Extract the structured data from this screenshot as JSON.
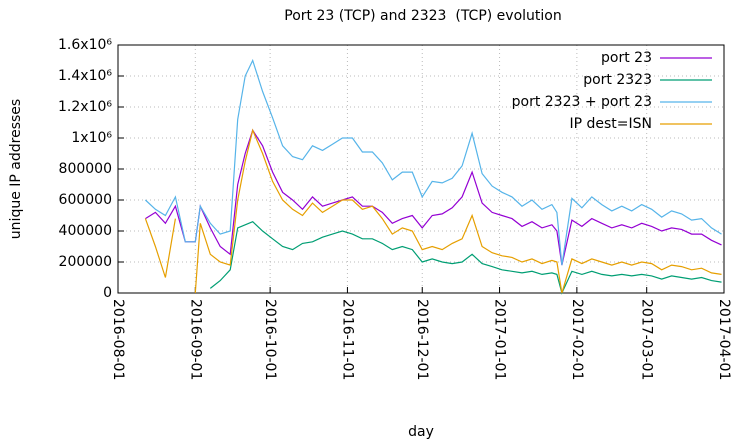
{
  "chart_data": {
    "type": "line",
    "title": "Port 23 (TCP) and 2323  (TCP) evolution",
    "x_label": "day",
    "y_label": "unique IP addresses",
    "x": [
      "2016-08-12",
      "2016-08-16",
      "2016-08-20",
      "2016-08-24",
      "2016-08-28",
      "2016-09-01",
      "2016-09-03",
      "2016-09-07",
      "2016-09-11",
      "2016-09-15",
      "2016-09-18",
      "2016-09-21",
      "2016-09-24",
      "2016-09-28",
      "2016-10-02",
      "2016-10-06",
      "2016-10-10",
      "2016-10-14",
      "2016-10-18",
      "2016-10-22",
      "2016-10-26",
      "2016-10-30",
      "2016-11-03",
      "2016-11-07",
      "2016-11-11",
      "2016-11-15",
      "2016-11-19",
      "2016-11-23",
      "2016-11-27",
      "2016-12-01",
      "2016-12-05",
      "2016-12-09",
      "2016-12-13",
      "2016-12-17",
      "2016-12-21",
      "2016-12-25",
      "2016-12-29",
      "2017-01-02",
      "2017-01-06",
      "2017-01-10",
      "2017-01-14",
      "2017-01-18",
      "2017-01-22",
      "2017-01-24",
      "2017-01-26",
      "2017-01-30",
      "2017-02-03",
      "2017-02-07",
      "2017-02-11",
      "2017-02-15",
      "2017-02-19",
      "2017-02-23",
      "2017-02-27",
      "2017-03-03",
      "2017-03-07",
      "2017-03-11",
      "2017-03-15",
      "2017-03-19",
      "2017-03-23",
      "2017-03-27",
      "2017-03-31"
    ],
    "series": [
      {
        "name": "port 23",
        "color": "#9400d3",
        "values": [
          480000,
          520000,
          450000,
          560000,
          330000,
          330000,
          560000,
          420000,
          300000,
          250000,
          700000,
          900000,
          1050000,
          950000,
          780000,
          650000,
          600000,
          540000,
          620000,
          560000,
          580000,
          600000,
          620000,
          560000,
          560000,
          520000,
          450000,
          480000,
          500000,
          420000,
          500000,
          510000,
          550000,
          620000,
          780000,
          580000,
          520000,
          500000,
          480000,
          430000,
          460000,
          420000,
          440000,
          400000,
          180000,
          470000,
          430000,
          480000,
          450000,
          420000,
          440000,
          420000,
          450000,
          430000,
          400000,
          420000,
          410000,
          380000,
          380000,
          340000,
          310000
        ]
      },
      {
        "name": "port 2323",
        "color": "#009e73",
        "values": [
          null,
          null,
          null,
          null,
          null,
          null,
          null,
          30000,
          80000,
          150000,
          420000,
          440000,
          460000,
          400000,
          350000,
          300000,
          280000,
          320000,
          330000,
          360000,
          380000,
          400000,
          380000,
          350000,
          350000,
          320000,
          280000,
          300000,
          280000,
          200000,
          220000,
          200000,
          190000,
          200000,
          250000,
          190000,
          170000,
          150000,
          140000,
          130000,
          140000,
          120000,
          130000,
          120000,
          0,
          140000,
          120000,
          140000,
          120000,
          110000,
          120000,
          110000,
          120000,
          110000,
          90000,
          110000,
          100000,
          90000,
          100000,
          80000,
          70000
        ]
      },
      {
        "name": "port 2323 + port 23",
        "color": "#56b4e9",
        "values": [
          600000,
          540000,
          500000,
          620000,
          330000,
          330000,
          560000,
          450000,
          380000,
          400000,
          1120000,
          1400000,
          1500000,
          1300000,
          1130000,
          950000,
          880000,
          860000,
          950000,
          920000,
          960000,
          1000000,
          1000000,
          910000,
          910000,
          840000,
          730000,
          780000,
          780000,
          620000,
          720000,
          710000,
          740000,
          820000,
          1030000,
          770000,
          690000,
          650000,
          620000,
          560000,
          600000,
          540000,
          570000,
          520000,
          180000,
          610000,
          550000,
          620000,
          570000,
          530000,
          560000,
          530000,
          570000,
          540000,
          490000,
          530000,
          510000,
          470000,
          480000,
          420000,
          380000
        ]
      },
      {
        "name": "IP dest=ISN",
        "color": "#e69f00",
        "values": [
          480000,
          300000,
          100000,
          480000,
          null,
          0,
          450000,
          250000,
          200000,
          180000,
          600000,
          850000,
          1050000,
          900000,
          720000,
          600000,
          540000,
          500000,
          580000,
          520000,
          560000,
          600000,
          600000,
          540000,
          560000,
          480000,
          380000,
          420000,
          400000,
          280000,
          300000,
          280000,
          320000,
          350000,
          500000,
          300000,
          260000,
          240000,
          230000,
          200000,
          220000,
          190000,
          210000,
          200000,
          0,
          220000,
          190000,
          220000,
          200000,
          180000,
          200000,
          180000,
          200000,
          190000,
          150000,
          180000,
          170000,
          150000,
          160000,
          130000,
          120000
        ]
      }
    ],
    "xlim": [
      "2016-08-01",
      "2017-04-01"
    ],
    "xticks": [
      "2016-08-01",
      "2016-09-01",
      "2016-10-01",
      "2016-11-01",
      "2016-12-01",
      "2017-01-01",
      "2017-02-01",
      "2017-03-01",
      "2017-04-01"
    ],
    "ylim": [
      0,
      1600000
    ],
    "yticks": [
      0,
      200000,
      400000,
      600000,
      800000,
      {
        "value": 1000000,
        "label": "1x10⁶"
      },
      {
        "value": 1200000,
        "label": "1.2x10⁶"
      },
      {
        "value": 1400000,
        "label": "1.4x10⁶"
      },
      {
        "value": 1600000,
        "label": "1.6x10⁶"
      }
    ],
    "grid": true,
    "legend": "top-right"
  }
}
